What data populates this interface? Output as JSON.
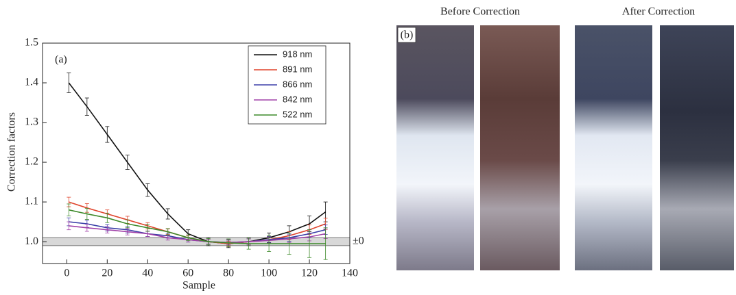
{
  "chart_data": {
    "type": "line",
    "panel_label": "(a)",
    "x_label": "Sample",
    "y_label": "Correction factors",
    "x": [
      1,
      10,
      20,
      30,
      40,
      50,
      60,
      70,
      80,
      90,
      100,
      110,
      120,
      128
    ],
    "series": [
      {
        "name": "918 nm",
        "color": "#111111",
        "values": [
          1.4,
          1.34,
          1.27,
          1.2,
          1.13,
          1.07,
          1.02,
          1.0,
          0.995,
          1.0,
          1.01,
          1.025,
          1.045,
          1.075
        ],
        "errors": [
          0.025,
          0.022,
          0.02,
          0.018,
          0.016,
          0.013,
          0.01,
          0.01,
          0.01,
          0.01,
          0.012,
          0.015,
          0.02,
          0.025
        ]
      },
      {
        "name": "891 nm",
        "color": "#e0442c",
        "values": [
          1.1,
          1.085,
          1.07,
          1.055,
          1.04,
          1.025,
          1.01,
          1.0,
          0.995,
          1.0,
          1.005,
          1.015,
          1.03,
          1.045
        ],
        "errors": [
          0.012,
          0.011,
          0.01,
          0.009,
          0.008,
          0.007,
          0.006,
          0.006,
          0.006,
          0.007,
          0.008,
          0.01,
          0.012,
          0.014
        ]
      },
      {
        "name": "866 nm",
        "color": "#3b3fa8",
        "values": [
          1.05,
          1.045,
          1.035,
          1.03,
          1.02,
          1.015,
          1.005,
          1.0,
          0.998,
          1.0,
          1.005,
          1.01,
          1.02,
          1.03
        ],
        "errors": [
          0.01,
          0.009,
          0.008,
          0.008,
          0.007,
          0.006,
          0.006,
          0.006,
          0.006,
          0.007,
          0.008,
          0.009,
          0.01,
          0.012
        ]
      },
      {
        "name": "842 nm",
        "color": "#a040a8",
        "values": [
          1.04,
          1.035,
          1.03,
          1.025,
          1.02,
          1.01,
          1.005,
          1.0,
          0.998,
          1.0,
          1.003,
          1.007,
          1.012,
          1.02
        ],
        "errors": [
          0.01,
          0.009,
          0.008,
          0.008,
          0.007,
          0.006,
          0.006,
          0.006,
          0.006,
          0.007,
          0.008,
          0.009,
          0.01,
          0.012
        ]
      },
      {
        "name": "522 nm",
        "color": "#3d8a2a",
        "values": [
          1.08,
          1.07,
          1.06,
          1.045,
          1.035,
          1.025,
          1.01,
          1.0,
          0.997,
          0.995,
          0.995,
          0.995,
          0.995,
          0.995
        ],
        "errors": [
          0.015,
          0.014,
          0.012,
          0.01,
          0.009,
          0.008,
          0.007,
          0.008,
          0.01,
          0.014,
          0.02,
          0.027,
          0.035,
          0.04
        ]
      }
    ],
    "band": [
      0.99,
      1.01
    ],
    "band_label": "±0",
    "xlim": [
      -12,
      140
    ],
    "ylim": [
      0.945,
      1.5
    ],
    "xticks": [
      0,
      20,
      40,
      60,
      80,
      100,
      120,
      140
    ],
    "yticks": [
      {
        "value": 1,
        "label": "1.0"
      },
      1.1,
      1.2,
      1.3,
      1.4,
      1.5
    ]
  },
  "images": {
    "panel_label": "(b)",
    "before_title": "Before Correction",
    "after_title": "After Correction"
  }
}
